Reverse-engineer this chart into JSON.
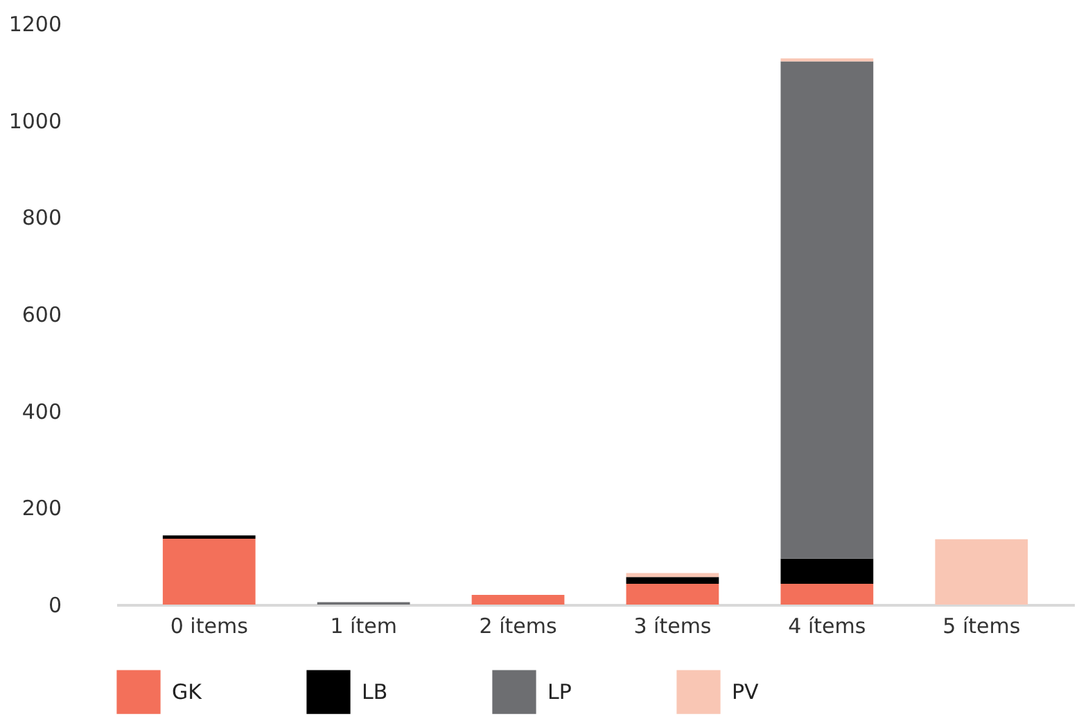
{
  "chart_data": {
    "type": "bar",
    "stacked": true,
    "categories": [
      "0 items",
      "1 ítem",
      "2 ítems",
      "3 ítems",
      "4 ítems",
      "5 ítems"
    ],
    "series": [
      {
        "name": "GK",
        "color": "#f3705a",
        "values": [
          136,
          0,
          20,
          43,
          43,
          0
        ]
      },
      {
        "name": "LB",
        "color": "#000000",
        "values": [
          7,
          0,
          0,
          14,
          52,
          0
        ]
      },
      {
        "name": "LP",
        "color": "#6d6e71",
        "values": [
          0,
          5,
          0,
          0,
          1027,
          0
        ]
      },
      {
        "name": "PV",
        "color": "#f9c6b4",
        "values": [
          0,
          0,
          0,
          8,
          6,
          135
        ]
      }
    ],
    "ylim": [
      0,
      1200
    ],
    "yticks": [
      0,
      200,
      400,
      600,
      800,
      1000,
      1200
    ],
    "grid": false,
    "legend": "bottom"
  }
}
